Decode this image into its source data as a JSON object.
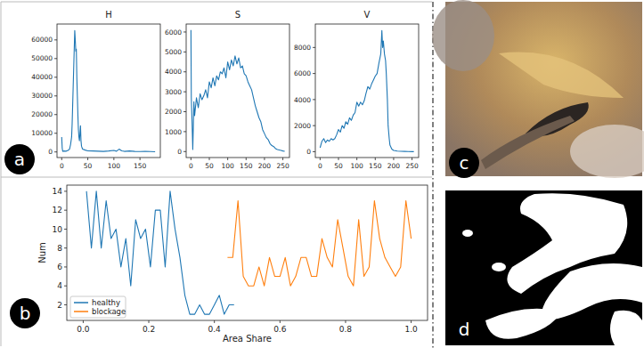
{
  "panel_labels": [
    "a",
    "b",
    "c",
    "d"
  ],
  "chart_data": [
    {
      "type": "line",
      "title": "H",
      "color": "#1f77b4",
      "x": [
        0,
        1,
        2,
        4,
        8,
        12,
        15,
        17,
        19,
        20,
        21,
        22,
        23,
        24,
        25,
        26,
        27,
        28,
        29,
        30,
        31,
        32,
        33,
        34,
        35,
        36,
        37,
        38,
        40,
        45,
        50,
        60,
        70,
        80,
        90,
        100,
        105,
        110,
        115,
        120,
        130,
        140,
        150,
        160,
        170,
        179
      ],
      "values": [
        8000,
        2000,
        300,
        500,
        400,
        800,
        1500,
        4000,
        8000,
        15000,
        25000,
        35000,
        45000,
        55000,
        65000,
        60000,
        54000,
        55000,
        40000,
        30000,
        20000,
        12000,
        8000,
        6000,
        10000,
        14000,
        6000,
        3000,
        1500,
        1000,
        600,
        500,
        400,
        300,
        500,
        800,
        400,
        1500,
        600,
        300,
        500,
        300,
        200,
        300,
        200,
        100
      ],
      "xlim": [
        -9,
        189
      ],
      "xticks": [
        0,
        50,
        100,
        150
      ],
      "ylim": [
        -3000,
        68500
      ],
      "yticks": [
        0,
        10000,
        20000,
        30000,
        40000,
        50000,
        60000
      ]
    },
    {
      "type": "line",
      "title": "S",
      "color": "#1f77b4",
      "x": [
        0,
        1,
        3,
        5,
        8,
        10,
        15,
        20,
        25,
        30,
        35,
        40,
        45,
        50,
        55,
        60,
        65,
        70,
        75,
        80,
        85,
        90,
        95,
        100,
        105,
        110,
        115,
        120,
        125,
        130,
        135,
        140,
        145,
        150,
        155,
        160,
        165,
        170,
        175,
        180,
        185,
        190,
        195,
        200,
        205,
        210,
        215,
        220,
        225,
        230,
        235,
        240,
        245,
        250,
        255
      ],
      "values": [
        6100,
        2700,
        1500,
        100,
        2500,
        1800,
        2700,
        2200,
        2900,
        2600,
        2800,
        3100,
        2700,
        3500,
        3200,
        3700,
        3300,
        3800,
        3600,
        4000,
        3900,
        4200,
        3700,
        4500,
        4100,
        4600,
        4300,
        4800,
        4400,
        4700,
        4200,
        4300,
        3900,
        3800,
        3500,
        3300,
        3100,
        2700,
        2300,
        2000,
        1700,
        1500,
        1100,
        900,
        700,
        600,
        400,
        300,
        250,
        150,
        100,
        80,
        60,
        30,
        10
      ],
      "xlim": [
        -13,
        268
      ],
      "xticks": [
        0,
        50,
        100,
        150,
        200,
        250
      ],
      "ylim": [
        -300,
        6400
      ],
      "yticks": [
        0,
        1000,
        2000,
        3000,
        4000,
        5000,
        6000
      ]
    },
    {
      "type": "line",
      "title": "V",
      "color": "#1f77b4",
      "x": [
        0,
        5,
        10,
        15,
        20,
        25,
        30,
        35,
        40,
        45,
        50,
        55,
        60,
        65,
        70,
        75,
        80,
        85,
        90,
        95,
        100,
        105,
        110,
        115,
        120,
        125,
        130,
        135,
        140,
        145,
        150,
        155,
        160,
        165,
        168,
        170,
        172,
        175,
        178,
        180,
        183,
        185,
        188,
        190,
        195,
        200,
        210,
        220,
        230,
        240,
        250,
        255
      ],
      "values": [
        300,
        800,
        1000,
        700,
        900,
        800,
        1000,
        900,
        1000,
        1300,
        1700,
        1500,
        2000,
        1800,
        2300,
        2100,
        2600,
        2400,
        2800,
        3000,
        3800,
        3500,
        3800,
        3600,
        3900,
        4500,
        5000,
        4800,
        5200,
        5500,
        5800,
        6000,
        6800,
        7500,
        9300,
        8000,
        8500,
        7500,
        7000,
        6000,
        4000,
        2000,
        1000,
        500,
        200,
        100,
        50,
        30,
        20,
        10,
        5,
        0
      ],
      "xlim": [
        -13,
        268
      ],
      "xticks": [
        0,
        50,
        100,
        150,
        200,
        250
      ],
      "ylim": [
        -450,
        9800
      ],
      "yticks": [
        0,
        2000,
        4000,
        6000,
        8000
      ]
    },
    {
      "type": "line",
      "xlabel": "Area Share",
      "ylabel": "Num",
      "legend": "lower left",
      "series": [
        {
          "name": "healthy",
          "color": "#1f77b4",
          "x": [
            0.01,
            0.025,
            0.04,
            0.055,
            0.07,
            0.085,
            0.1,
            0.115,
            0.13,
            0.145,
            0.16,
            0.175,
            0.19,
            0.205,
            0.22,
            0.235,
            0.25,
            0.265,
            0.28,
            0.295,
            0.31,
            0.325,
            0.34,
            0.355,
            0.37,
            0.385,
            0.4,
            0.415,
            0.43,
            0.445,
            0.46
          ],
          "values": [
            14,
            8,
            14,
            8,
            13,
            9,
            10,
            6,
            9,
            4,
            11,
            9,
            10,
            6,
            12,
            12,
            6,
            14,
            10,
            7,
            3,
            1,
            1,
            2,
            1,
            1,
            2,
            3,
            1,
            2,
            2
          ]
        },
        {
          "name": "blockage",
          "color": "#ff7f0e",
          "x": [
            0.44,
            0.456,
            0.472,
            0.488,
            0.504,
            0.52,
            0.536,
            0.552,
            0.568,
            0.584,
            0.6,
            0.616,
            0.632,
            0.648,
            0.664,
            0.68,
            0.696,
            0.712,
            0.728,
            0.744,
            0.76,
            0.776,
            0.792,
            0.808,
            0.824,
            0.84,
            0.856,
            0.872,
            0.888,
            0.904,
            0.92,
            0.936,
            0.952,
            0.968,
            0.984,
            1.0
          ],
          "values": [
            7,
            7,
            13,
            5,
            4,
            4,
            6,
            4,
            7,
            5,
            5,
            7,
            4,
            5,
            7,
            7,
            5,
            5,
            9,
            7,
            6,
            11,
            8,
            5,
            4,
            11,
            5,
            6,
            13,
            9,
            7,
            6,
            5,
            6,
            13,
            9
          ]
        }
      ],
      "xlim": [
        -0.05,
        1.05
      ],
      "xticks": [
        {
          "value": 0,
          "label": "0.0"
        },
        0.2,
        0.4,
        0.6,
        0.8,
        {
          "value": 1,
          "label": "1.0"
        }
      ],
      "ylim": [
        0.35,
        14.65
      ],
      "yticks": [
        2,
        4,
        6,
        8,
        10,
        12,
        14
      ]
    }
  ]
}
